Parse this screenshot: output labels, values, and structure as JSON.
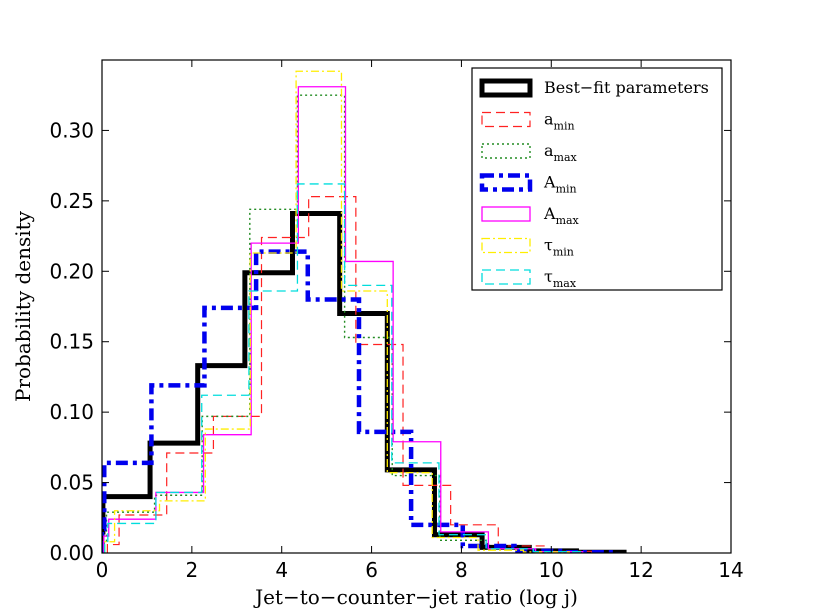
{
  "chart_data": {
    "type": "histogram-step",
    "title": "",
    "xlabel": "Jet−to−counter−jet ratio (log j)",
    "ylabel": "Probability density",
    "xlim": [
      0,
      14
    ],
    "ylim": [
      0,
      0.35
    ],
    "xticks": [
      0,
      2,
      4,
      6,
      8,
      10,
      12,
      14
    ],
    "xtick_labels": [
      "0",
      "2",
      "4",
      "6",
      "8",
      "10",
      "12",
      "14"
    ],
    "yticks": [
      0.0,
      0.05,
      0.1,
      0.15,
      0.2,
      0.25,
      0.3
    ],
    "ytick_labels": [
      "0.00",
      "0.05",
      "0.10",
      "0.15",
      "0.20",
      "0.25",
      "0.30"
    ],
    "grid": false,
    "legend_position": "top-right",
    "series": [
      {
        "name": "Best-fit parameters",
        "legend_main": "Best−fit parameters",
        "legend_sub": "",
        "color": "#000000",
        "linestyle": "solid",
        "linewidth": 5,
        "edges": [
          0,
          0.02,
          1.07,
          2.13,
          3.18,
          4.24,
          5.29,
          6.35,
          7.4,
          8.46,
          9.51,
          10.56,
          11.62
        ],
        "values": [
          0.015,
          0.04,
          0.078,
          0.133,
          0.199,
          0.241,
          0.17,
          0.059,
          0.013,
          0.004,
          0.0015,
          0.0005
        ]
      },
      {
        "name": "a_min",
        "legend_main": "a",
        "legend_sub": "min",
        "color": "#ff2222",
        "linestyle": "dashed",
        "linewidth": 1.2,
        "edges": [
          0.12,
          0.38,
          1.44,
          2.48,
          3.55,
          4.6,
          5.65,
          6.7,
          7.76,
          8.82,
          9.87,
          10.9
        ],
        "values": [
          0.006,
          0.027,
          0.071,
          0.097,
          0.224,
          0.253,
          0.148,
          0.048,
          0.02,
          0.005,
          0.0012
        ]
      },
      {
        "name": "a_max",
        "legend_main": "a",
        "legend_sub": "max",
        "color": "#228b22",
        "linestyle": "dotted",
        "linewidth": 1.4,
        "edges": [
          0.02,
          0.1,
          1.17,
          2.23,
          3.29,
          4.35,
          5.4,
          6.46,
          7.52,
          8.58,
          9.63,
          10.69
        ],
        "values": [
          0.007,
          0.029,
          0.041,
          0.097,
          0.244,
          0.325,
          0.153,
          0.055,
          0.009,
          0.003,
          0.001
        ]
      },
      {
        "name": "A_min",
        "legend_main": "A",
        "legend_sub": "min",
        "color": "#0000ee",
        "linestyle": "dashdot",
        "linewidth": 4.5,
        "edges": [
          0,
          0.05,
          1.1,
          2.28,
          3.43,
          4.58,
          5.72,
          6.88,
          8.03,
          9.18,
          10.33,
          11.48
        ],
        "values": [
          0.017,
          0.064,
          0.119,
          0.174,
          0.214,
          0.18,
          0.086,
          0.02,
          0.005,
          0.0015,
          0.0005
        ]
      },
      {
        "name": "A_max",
        "legend_main": "A",
        "legend_sub": "max",
        "color": "#ff00ff",
        "linestyle": "solid",
        "linewidth": 1.3,
        "edges": [
          0.04,
          0.15,
          1.2,
          2.26,
          3.32,
          4.37,
          5.42,
          6.48,
          7.54,
          8.6,
          9.65,
          10.7
        ],
        "values": [
          0.012,
          0.024,
          0.043,
          0.084,
          0.22,
          0.331,
          0.207,
          0.079,
          0.015,
          0.003,
          0.001
        ]
      },
      {
        "name": "tau_min",
        "legend_main": "τ",
        "legend_sub": "min",
        "color": "#ffee00",
        "linestyle": "dashdot",
        "linewidth": 1.3,
        "edges": [
          0.06,
          0.28,
          1.28,
          2.3,
          3.3,
          4.32,
          5.33,
          6.35,
          7.35,
          8.37,
          9.38,
          10.4
        ],
        "values": [
          0.008,
          0.03,
          0.037,
          0.088,
          0.213,
          0.342,
          0.186,
          0.057,
          0.011,
          0.002,
          0.0008
        ]
      },
      {
        "name": "tau_max",
        "legend_main": "τ",
        "legend_sub": "max",
        "color": "#00dddd",
        "linestyle": "dashed",
        "linewidth": 1.3,
        "edges": [
          0.06,
          0.13,
          1.2,
          2.22,
          3.27,
          4.35,
          5.4,
          6.45,
          7.5,
          8.55,
          9.6,
          10.65
        ],
        "values": [
          0.006,
          0.021,
          0.043,
          0.112,
          0.186,
          0.262,
          0.19,
          0.064,
          0.013,
          0.003,
          0.001
        ]
      }
    ]
  }
}
